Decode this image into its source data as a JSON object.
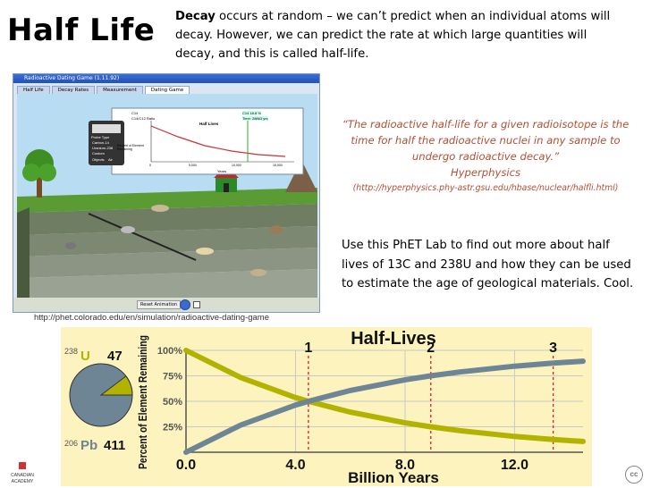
{
  "slide": {
    "title": "Half Life",
    "intro_lead": "Decay",
    "intro_rest": " occurs at random – we can’t predict when an individual atoms will decay. However, we can predict the rate at which large quantities will decay, and this is called half-life."
  },
  "sim": {
    "window_title": "Radioactive Dating Game (1.11.92)",
    "tabs": [
      "Half Life",
      "Decay Rates",
      "Measurement",
      "Dating Game"
    ],
    "probe_panel_title": "Probe Type",
    "probe_options": [
      "Carbon-14",
      "Uranium-238",
      "Custom"
    ],
    "objects_label": "Objects",
    "rocks_label": "Air",
    "legend_items": [
      "C14",
      "C14/C12 Ratio"
    ],
    "readout_top": "C14 18.8 %",
    "readout_bottom": "Time: 28863 yrs",
    "graph_title": "Half Lives",
    "graph_ylabel": "Percent of Element Remaining",
    "graph_xlabel": "Years",
    "graph_xticks": [
      "0",
      "5,000",
      "10,000",
      "15,000"
    ],
    "reset_label": "Reset Animation",
    "colors": {
      "sky": "#b8dcf1",
      "grass": "#5a9c33",
      "layer_top": "#6f7d63"
    }
  },
  "url_caption": "http://phet.colorado.edu/en/simulation/radioactive-dating-game",
  "quote": {
    "text": "“The radioactive half-life for a given radioisotope is the time for half the radioactive nuclei in any sample to undergo radioactive decay.”",
    "attribution": "Hyperphysics",
    "source": "(http://hyperphysics.phy-astr.gsu.edu/hbase/nuclear/halfli.html)"
  },
  "phet_text": "Use this PhET Lab to find out more about half lives of 13C and 238U and how they can be used to estimate the age of geological materials. Cool.",
  "chart_data": {
    "type": "line",
    "title": "Half-Lives",
    "xlabel": "Billion Years",
    "ylabel": "Percent of Element Remaining",
    "xlim": [
      0,
      14.5
    ],
    "ylim": [
      0,
      100
    ],
    "xticks": [
      0.0,
      4.0,
      8.0,
      12.0
    ],
    "xtick_labels": [
      "0.0",
      "4.0",
      "8.0",
      "12.0"
    ],
    "yticks": [
      25,
      50,
      75,
      100
    ],
    "ytick_labels": [
      "25%",
      "50%",
      "75%",
      "100%"
    ],
    "series": [
      {
        "color": "#b2b300",
        "x": [
          0,
          2,
          4,
          4.47,
          6,
          8,
          8.94,
          10,
          12,
          13.41,
          14.5
        ],
        "values": [
          100,
          73.3,
          53.7,
          50,
          39.4,
          28.9,
          25,
          21.2,
          15.5,
          12.5,
          10.6
        ]
      },
      {
        "color": "#6e8596",
        "x": [
          0,
          2,
          4,
          4.47,
          6,
          8,
          8.94,
          10,
          12,
          13.41,
          14.5
        ],
        "values": [
          0,
          26.7,
          46.3,
          50,
          60.6,
          71.1,
          75,
          78.8,
          84.5,
          87.5,
          89.4
        ]
      }
    ],
    "half_life_markers": {
      "x": [
        4.47,
        8.94,
        13.41
      ],
      "labels": [
        "1",
        "2",
        "3"
      ],
      "color": "#e0201c"
    },
    "pie": {
      "top_label_mass": "238",
      "top_label_symbol": "U",
      "top_label_value": "47",
      "bottom_label_mass": "206",
      "bottom_label_symbol": "Pb",
      "bottom_label_value": "411",
      "fraction_u": 0.103,
      "colors": {
        "u": "#b2b300",
        "pb": "#6e8596"
      }
    }
  },
  "footer": {
    "logo_text_1": "CANADIAN",
    "logo_text_2": "ACADEMY",
    "cc_label": "cc"
  }
}
